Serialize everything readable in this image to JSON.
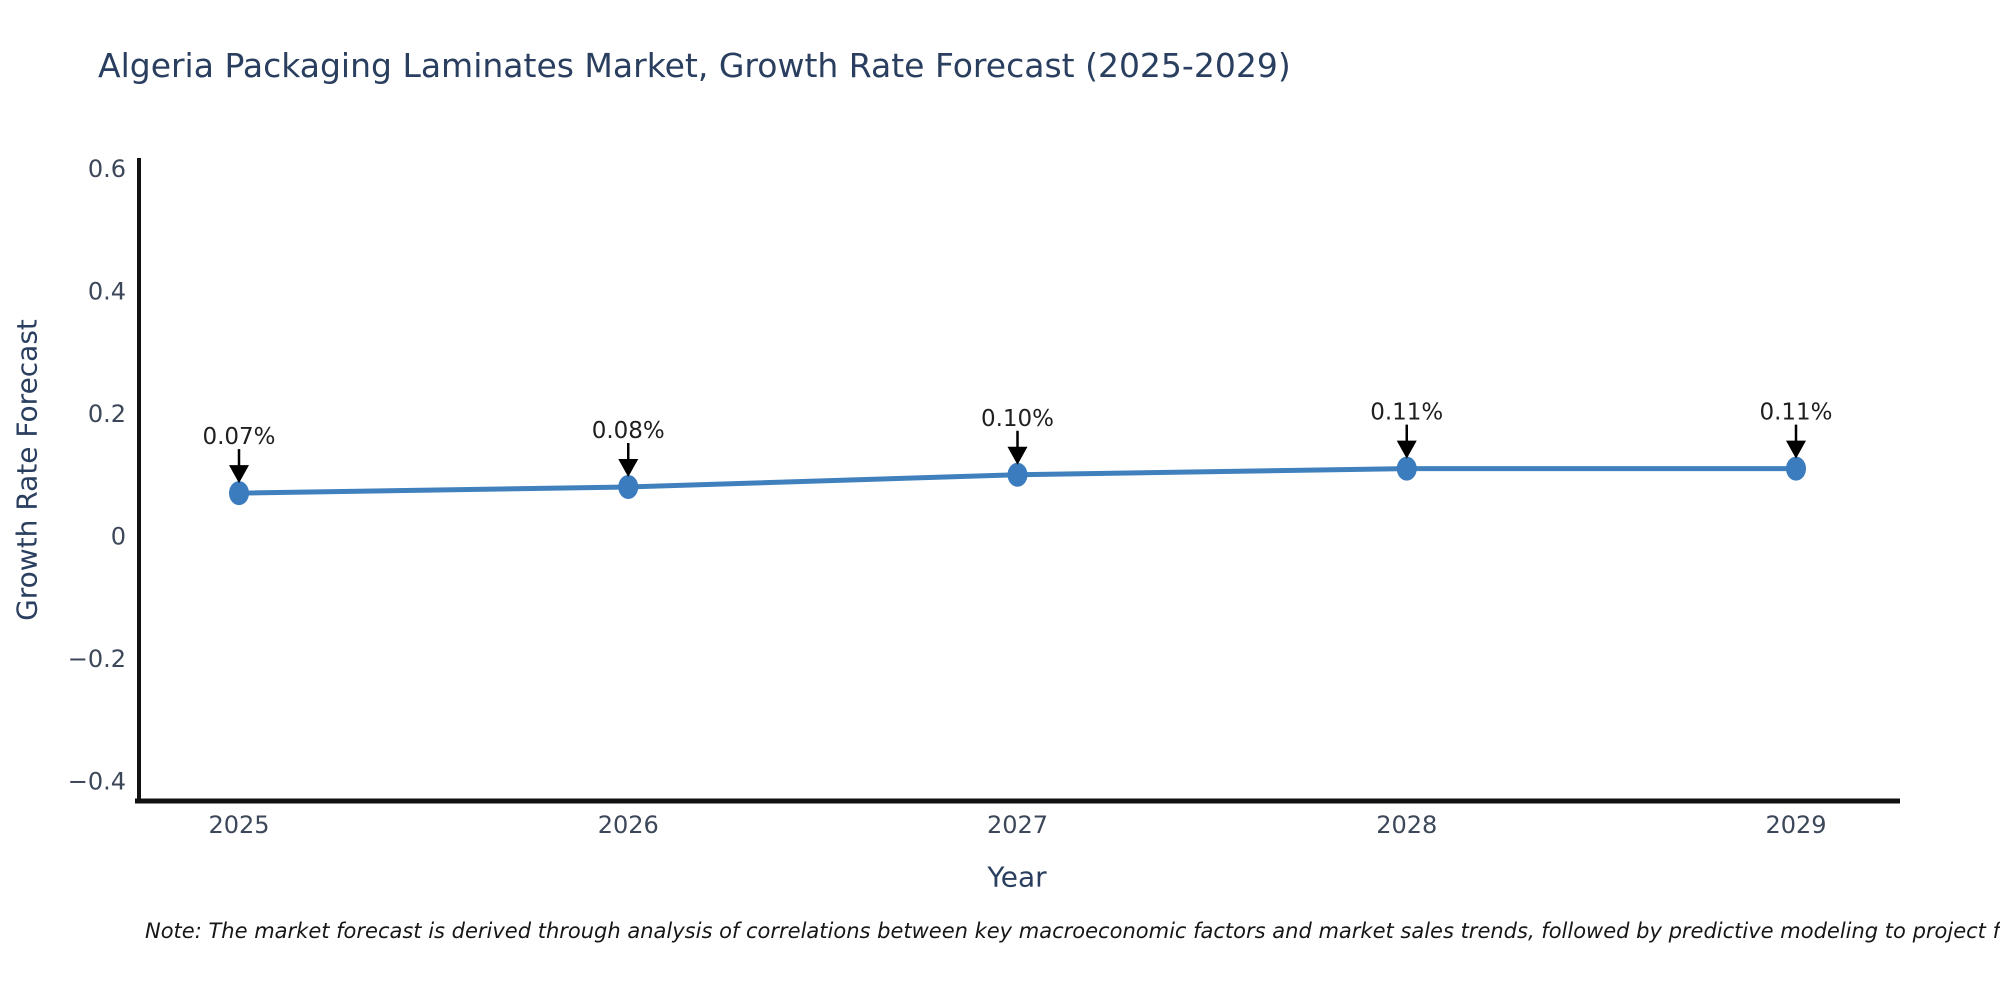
{
  "title": "Algeria Packaging Laminates Market, Growth Rate Forecast (2025-2029)",
  "note": "Note: The market forecast is derived through analysis of correlations between key macroeconomic factors and market sales trends, followed by predictive modeling to project future sa",
  "colors": {
    "line": "#3f80bd",
    "marker": "#3b7cbe",
    "axis": "#111111",
    "title_text": "#2a3f5f",
    "tick_text": "#3c4759",
    "annotation_text": "#1f1f1f"
  },
  "chart_data": {
    "type": "line",
    "title": "Algeria Packaging Laminates Market, Growth Rate Forecast (2025-2029)",
    "xlabel": "Year",
    "ylabel": "Growth Rate Forecast",
    "x": [
      2025,
      2026,
      2027,
      2028,
      2029
    ],
    "xtick_labels": [
      "2025",
      "2026",
      "2027",
      "2028",
      "2029"
    ],
    "series": [
      {
        "name": "Growth Rate Forecast",
        "values": [
          0.07,
          0.08,
          0.1,
          0.11,
          0.11
        ]
      }
    ],
    "point_labels": [
      "0.07%",
      "0.08%",
      "0.10%",
      "0.11%",
      "0.11%"
    ],
    "yticks": [
      0.6,
      0.4,
      0.2,
      0,
      -0.2,
      -0.4
    ],
    "ytick_labels": [
      "0.6",
      "0.4",
      "0.2",
      "0",
      "−0.2",
      "−0.4"
    ],
    "ylim": [
      -0.44,
      0.61
    ],
    "grid": false,
    "legend": "none"
  }
}
